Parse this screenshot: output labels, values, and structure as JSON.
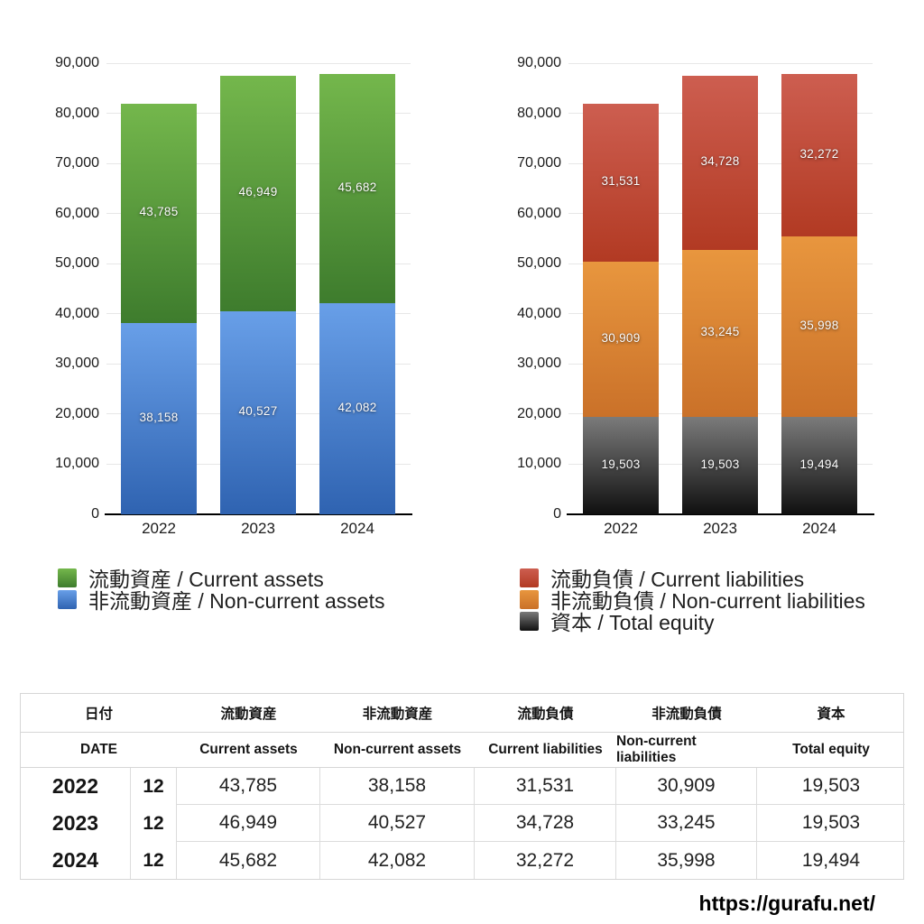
{
  "watermark": "https://gurafu.net/",
  "chart_data": [
    {
      "type": "bar",
      "stacked": true,
      "title": "",
      "xlabel": "",
      "ylabel": "",
      "categories": [
        "2022",
        "2023",
        "2024"
      ],
      "series": [
        {
          "name": "流動資産 / Current assets",
          "values": [
            43785,
            46949,
            45682
          ],
          "color_top": "#74b74c",
          "color_bottom": "#3e7c2d"
        },
        {
          "name": "非流動資産 / Non-current assets",
          "values": [
            38158,
            40527,
            42082
          ],
          "color_top": "#689fe8",
          "color_bottom": "#2f63b1"
        }
      ],
      "stack_bottom_to_top": [
        1,
        0
      ],
      "ylim": [
        0,
        90000
      ],
      "ytick_step": 10000,
      "grid": true,
      "legend_position": "bottom"
    },
    {
      "type": "bar",
      "stacked": true,
      "title": "",
      "xlabel": "",
      "ylabel": "",
      "categories": [
        "2022",
        "2023",
        "2024"
      ],
      "series": [
        {
          "name": "流動負債 / Current liabilities",
          "values": [
            31531,
            34728,
            32272
          ],
          "color_top": "#cd5e50",
          "color_bottom": "#b23a23"
        },
        {
          "name": "非流動負債 / Non-current liabilities",
          "values": [
            30909,
            33245,
            35998
          ],
          "color_top": "#e8963e",
          "color_bottom": "#ca7129"
        },
        {
          "name": "資本 / Total equity",
          "values": [
            19503,
            19503,
            19494
          ],
          "color_top": "#7b7b7b",
          "color_bottom": "#101010"
        }
      ],
      "stack_bottom_to_top": [
        2,
        1,
        0
      ],
      "ylim": [
        0,
        90000
      ],
      "ytick_step": 10000,
      "grid": true,
      "legend_position": "bottom"
    }
  ],
  "table": {
    "header_jp": [
      "日付",
      "流動資産",
      "非流動資産",
      "流動負債",
      "非流動負債",
      "資本"
    ],
    "header_en": [
      "DATE",
      "Current assets",
      "Non-current assets",
      "Current liabilities",
      "Non-current liabilities",
      "Total equity"
    ],
    "rows": [
      {
        "year": "2022",
        "month": "12",
        "values": [
          "43,785",
          "38,158",
          "31,531",
          "30,909",
          "19,503"
        ]
      },
      {
        "year": "2023",
        "month": "12",
        "values": [
          "46,949",
          "40,527",
          "34,728",
          "33,245",
          "19,503"
        ]
      },
      {
        "year": "2024",
        "month": "12",
        "values": [
          "45,682",
          "42,082",
          "32,272",
          "35,998",
          "19,494"
        ]
      }
    ]
  }
}
